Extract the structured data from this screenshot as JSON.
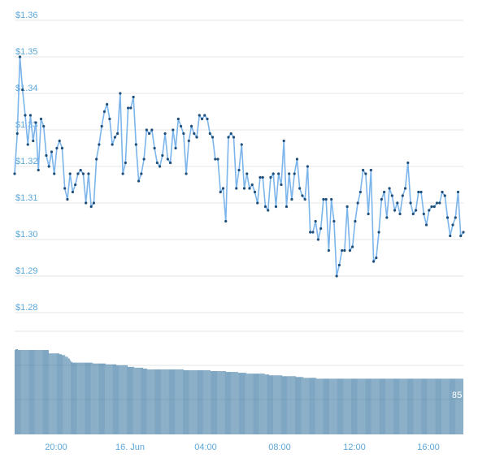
{
  "chart_data": [
    {
      "type": "line",
      "series": [
        {
          "values": [
            1.318,
            1.329,
            1.35,
            1.341,
            1.334,
            1.326,
            1.334,
            1.327,
            1.332,
            1.319,
            1.333,
            1.331,
            1.323,
            1.32,
            1.324,
            1.318,
            1.325,
            1.327,
            1.325,
            1.314,
            1.311,
            1.318,
            1.313,
            1.315,
            1.318,
            1.319,
            1.318,
            1.31,
            1.318,
            1.309,
            1.31,
            1.322,
            1.326,
            1.331,
            1.335,
            1.337,
            1.333,
            1.326,
            1.328,
            1.329,
            1.34,
            1.318,
            1.321,
            1.336,
            1.336,
            1.339,
            1.326,
            1.316,
            1.318,
            1.322,
            1.33,
            1.329,
            1.33,
            1.325,
            1.321,
            1.32,
            1.323,
            1.329,
            1.322,
            1.321,
            1.33,
            1.325,
            1.333,
            1.331,
            1.329,
            1.318,
            1.327,
            1.331,
            1.329,
            1.328,
            1.334,
            1.333,
            1.334,
            1.333,
            1.329,
            1.328,
            1.322,
            1.322,
            1.313,
            1.314,
            1.305,
            1.328,
            1.329,
            1.328,
            1.314,
            1.319,
            1.326,
            1.314,
            1.318,
            1.314,
            1.315,
            1.313,
            1.31,
            1.317,
            1.317,
            1.309,
            1.308,
            1.317,
            1.318,
            1.309,
            1.318,
            1.315,
            1.327,
            1.309,
            1.318,
            1.311,
            1.318,
            1.322,
            1.314,
            1.312,
            1.311,
            1.32,
            1.302,
            1.302,
            1.305,
            1.3,
            1.303,
            1.311,
            1.311,
            1.297,
            1.311,
            1.305,
            1.29,
            1.293,
            1.297,
            1.297,
            1.309,
            1.297,
            1.298,
            1.305,
            1.31,
            1.313,
            1.319,
            1.318,
            1.307,
            1.319,
            1.294,
            1.295,
            1.302,
            1.311,
            1.313,
            1.306,
            1.314,
            1.312,
            1.308,
            1.31,
            1.307,
            1.312,
            1.314,
            1.321,
            1.31,
            1.307,
            1.308,
            1.313,
            1.313,
            1.307,
            1.304,
            1.308,
            1.309,
            1.309,
            1.31,
            1.31,
            1.313,
            1.312,
            1.306,
            1.301,
            1.304,
            1.306,
            1.313,
            1.301,
            1.302
          ]
        },
        {
          "type": "bar",
          "values": [
            100,
            101,
            101,
            101,
            100,
            100,
            100,
            100,
            100,
            100,
            100,
            100,
            100,
            100,
            100,
            100,
            100,
            100,
            100,
            100,
            100,
            100,
            100,
            100,
            100,
            100,
            100,
            100,
            100,
            100,
            100,
            100,
            100,
            100,
            100,
            100,
            100,
            100,
            100,
            100,
            96,
            96,
            96,
            96,
            96,
            96,
            96,
            96,
            96,
            96,
            96,
            96,
            95,
            95,
            95,
            94,
            94,
            94,
            94,
            92,
            92,
            92,
            90,
            90,
            88,
            86,
            86,
            85,
            85,
            85,
            85,
            85,
            85,
            85,
            85,
            85,
            85,
            85,
            85,
            85,
            85,
            85,
            85,
            85,
            85,
            85,
            85,
            85,
            85,
            85,
            85,
            84,
            84,
            84,
            84,
            84,
            84,
            84,
            84,
            84,
            84,
            84,
            84,
            84,
            84,
            84,
            83,
            83,
            83,
            83,
            83,
            83,
            83,
            83,
            83,
            83,
            83,
            83,
            82,
            82,
            82,
            82,
            82,
            82,
            82,
            82,
            82,
            82,
            82,
            82,
            82,
            80,
            80,
            80,
            80,
            80,
            80,
            80,
            80,
            79,
            79,
            79,
            79,
            79,
            79,
            79,
            79,
            79,
            79,
            78,
            78,
            78,
            78,
            78,
            77,
            77,
            77,
            77,
            77,
            77,
            77,
            77,
            77,
            77,
            77,
            77,
            77,
            77,
            77,
            77,
            77,
            77,
            77,
            77,
            77,
            77,
            77,
            77,
            77,
            77,
            77,
            77,
            77,
            77,
            77,
            77,
            77,
            77,
            77,
            77,
            77,
            77,
            77,
            77,
            77,
            77,
            76,
            76,
            76,
            76,
            76,
            76,
            76,
            76,
            76,
            76,
            76,
            76,
            76,
            76,
            76,
            76,
            76,
            76,
            76,
            76,
            76,
            76,
            76,
            76,
            76,
            76,
            76,
            76,
            76,
            76,
            76,
            75,
            75,
            75,
            75,
            75,
            75,
            75,
            75,
            75,
            75,
            75,
            75,
            75,
            75,
            75,
            75,
            75,
            75,
            74,
            74,
            74,
            74,
            74,
            74,
            74,
            74,
            74,
            74,
            74,
            74,
            74,
            74,
            73,
            73,
            73,
            73,
            73,
            73,
            73,
            73,
            73,
            73,
            72,
            72,
            72,
            72,
            72,
            72,
            72,
            72,
            72,
            72,
            72,
            72,
            72,
            72,
            72,
            72,
            72,
            72,
            72,
            72,
            72,
            71,
            71,
            71,
            71,
            71,
            70,
            70,
            70,
            70,
            70,
            70,
            70,
            70,
            70,
            70,
            70,
            70,
            70,
            70,
            70,
            69,
            69,
            69,
            69,
            69,
            69,
            69,
            69,
            69,
            69,
            69,
            69,
            69,
            69,
            69,
            69,
            68,
            68,
            68,
            68,
            68,
            68,
            68,
            68,
            68,
            67,
            67,
            67,
            67,
            67,
            67,
            67,
            67,
            67,
            67,
            67,
            67,
            67,
            67,
            67,
            66,
            66,
            66,
            66,
            66,
            66,
            66,
            66,
            66,
            66,
            66,
            66,
            66,
            66,
            66,
            66,
            66,
            66,
            66,
            66,
            66,
            66,
            66,
            66,
            66,
            66,
            66,
            66,
            66,
            66,
            66,
            66,
            66,
            66,
            66,
            66,
            66,
            66,
            66,
            66,
            66,
            66,
            66,
            66,
            66,
            66,
            66,
            66,
            66,
            66,
            66,
            66,
            66,
            66,
            66,
            66,
            66,
            66,
            66,
            66,
            66,
            66,
            66,
            66,
            66,
            66,
            66,
            66,
            66,
            66,
            66,
            66,
            66,
            66,
            66,
            66,
            66,
            66,
            66,
            66,
            66,
            66,
            66,
            66,
            66,
            66,
            66,
            66,
            66,
            66,
            66,
            66,
            66,
            66,
            66,
            66,
            66,
            66,
            66,
            66,
            66,
            66,
            66,
            66,
            66,
            66,
            66,
            66,
            66,
            66,
            66,
            66,
            66,
            66,
            66,
            66,
            66,
            66,
            66,
            66,
            66,
            66,
            66,
            66,
            66,
            66,
            66,
            66,
            66,
            66,
            66,
            66,
            66,
            66,
            66,
            66,
            66,
            66,
            66,
            66,
            66,
            66,
            66,
            66,
            66,
            66,
            66,
            66,
            66,
            66,
            66,
            66,
            66,
            66,
            66,
            66,
            66,
            66,
            66,
            66,
            66,
            66,
            66,
            66,
            66,
            66,
            66,
            66,
            66,
            66
          ]
        }
      ],
      "y_ticks": [
        "$1.36",
        "$1.35",
        "$1.34",
        "$1.33",
        "$1.32",
        "$1.31",
        "$1.30",
        "$1.29",
        "$1.28"
      ],
      "x_ticks": [
        "20:00",
        "16. Jun",
        "04:00",
        "08:00",
        "12:00",
        "16:00"
      ],
      "ylim": [
        1.28,
        1.36
      ],
      "grid": true,
      "colors": {
        "line": "#7cb5ec",
        "point": "#1f4e79",
        "bar": "#2b6c99",
        "label": "#5ba7d8",
        "grid": "#e6e6e6"
      },
      "edge_label": "85"
    }
  ]
}
